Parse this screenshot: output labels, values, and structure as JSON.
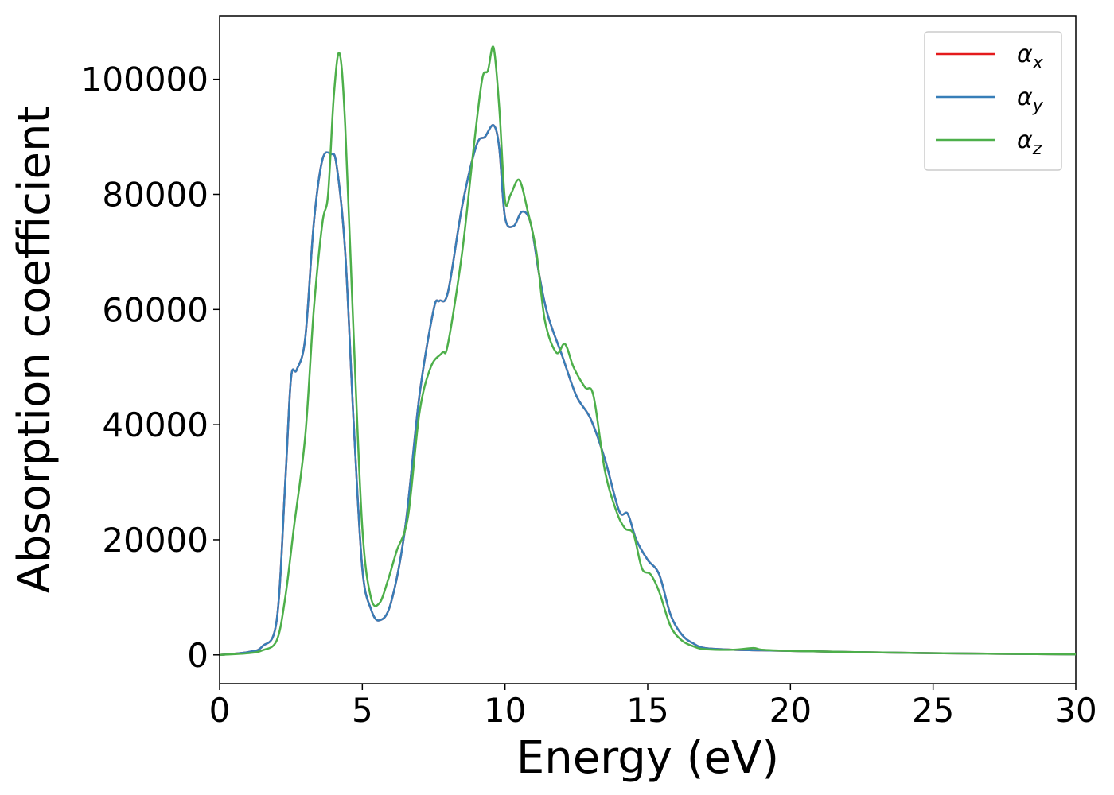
{
  "chart_data": {
    "type": "line",
    "title": "",
    "xlabel": "Energy (eV)",
    "ylabel": "Absorption coefficient",
    "xlim": [
      0,
      30
    ],
    "ylim": [
      -5000,
      111000
    ],
    "xticks": [
      0,
      5,
      10,
      15,
      20,
      25,
      30
    ],
    "yticks": [
      0,
      20000,
      40000,
      60000,
      80000,
      100000
    ],
    "grid": false,
    "legend_position": "top-right",
    "series": [
      {
        "name": "α",
        "name_sub": "x",
        "color": "#e41a1c",
        "x": [
          0,
          1,
          1.5,
          2.0,
          2.3,
          2.5,
          2.7,
          3.0,
          3.3,
          3.6,
          3.9,
          4.1,
          4.4,
          4.7,
          5.0,
          5.3,
          5.6,
          6.0,
          6.5,
          7.0,
          7.5,
          7.7,
          8.0,
          8.5,
          9.0,
          9.3,
          9.6,
          9.8,
          10.0,
          10.3,
          10.6,
          10.9,
          11.2,
          11.5,
          12.0,
          12.5,
          13.0,
          13.5,
          14.0,
          14.3,
          14.6,
          15.0,
          15.4,
          15.8,
          16.2,
          16.6,
          17.0,
          18.0,
          19.0,
          20.0,
          22.0,
          25.0,
          30.0
        ],
        "y": [
          0,
          500,
          1500,
          6000,
          30000,
          48000,
          49500,
          55000,
          75000,
          86000,
          87000,
          85000,
          70000,
          40000,
          15000,
          8000,
          6000,
          9000,
          22000,
          45000,
          60000,
          61500,
          63000,
          78000,
          88500,
          90000,
          92000,
          88000,
          76000,
          74500,
          77000,
          75000,
          66000,
          59000,
          52000,
          45000,
          41000,
          34000,
          25000,
          24500,
          20000,
          16500,
          14000,
          7000,
          3500,
          2000,
          1200,
          900,
          800,
          700,
          500,
          300,
          100
        ]
      },
      {
        "name": "α",
        "name_sub": "y",
        "color": "#377eb8",
        "x": [
          0,
          1,
          1.5,
          2.0,
          2.3,
          2.5,
          2.7,
          3.0,
          3.3,
          3.6,
          3.9,
          4.1,
          4.4,
          4.7,
          5.0,
          5.3,
          5.6,
          6.0,
          6.5,
          7.0,
          7.5,
          7.7,
          8.0,
          8.5,
          9.0,
          9.3,
          9.6,
          9.8,
          10.0,
          10.3,
          10.6,
          10.9,
          11.2,
          11.5,
          12.0,
          12.5,
          13.0,
          13.5,
          14.0,
          14.3,
          14.6,
          15.0,
          15.4,
          15.8,
          16.2,
          16.6,
          17.0,
          18.0,
          19.0,
          20.0,
          22.0,
          25.0,
          30.0
        ],
        "y": [
          0,
          500,
          1500,
          6000,
          30000,
          48000,
          49500,
          55000,
          75000,
          86000,
          87000,
          85000,
          70000,
          40000,
          15000,
          8000,
          6000,
          9000,
          22000,
          45000,
          60000,
          61500,
          63000,
          78000,
          88500,
          90000,
          92000,
          88000,
          76000,
          74500,
          77000,
          75000,
          66000,
          59000,
          52000,
          45000,
          41000,
          34000,
          25000,
          24500,
          20000,
          16500,
          14000,
          7000,
          3500,
          2000,
          1200,
          900,
          800,
          700,
          500,
          300,
          100
        ]
      },
      {
        "name": "α",
        "name_sub": "z",
        "color": "#4daf4a",
        "x": [
          0,
          1,
          1.5,
          2.0,
          2.3,
          2.6,
          3.0,
          3.3,
          3.6,
          3.8,
          4.0,
          4.2,
          4.4,
          4.7,
          5.0,
          5.3,
          5.6,
          5.9,
          6.2,
          6.6,
          7.0,
          7.4,
          7.8,
          8.0,
          8.5,
          8.9,
          9.2,
          9.4,
          9.6,
          9.8,
          10.0,
          10.2,
          10.5,
          10.8,
          11.1,
          11.4,
          11.8,
          12.1,
          12.4,
          12.8,
          13.1,
          13.5,
          13.9,
          14.2,
          14.5,
          14.8,
          15.1,
          15.4,
          15.8,
          16.2,
          16.6,
          17.0,
          18.0,
          18.7,
          19.0,
          20.0,
          22.0,
          25.0,
          30.0
        ],
        "y": [
          0,
          300,
          800,
          2500,
          10000,
          22000,
          38000,
          60000,
          75000,
          80000,
          97000,
          104500,
          92000,
          55000,
          22000,
          10000,
          9000,
          13000,
          18000,
          24000,
          42000,
          50000,
          52500,
          54000,
          70000,
          88000,
          100000,
          101500,
          105500,
          95000,
          79000,
          80000,
          82500,
          77000,
          70000,
          58000,
          52500,
          54000,
          50000,
          46500,
          45000,
          32000,
          25000,
          22000,
          21000,
          15000,
          14000,
          11000,
          5000,
          2500,
          1500,
          1000,
          900,
          1200,
          900,
          700,
          500,
          300,
          100
        ]
      }
    ]
  }
}
